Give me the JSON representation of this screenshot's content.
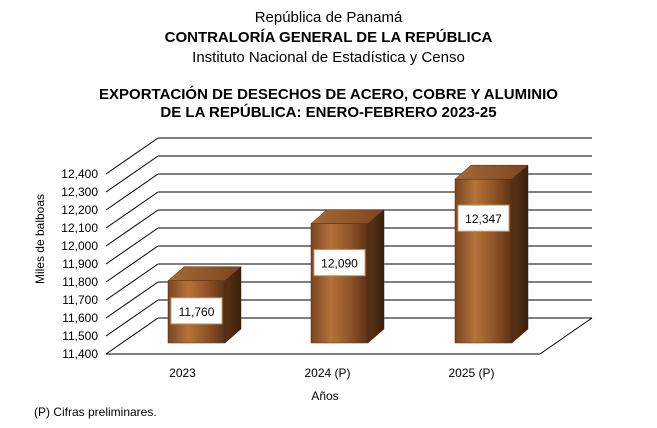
{
  "header": {
    "line1": "República de Panamá",
    "line2": "CONTRALORÍA GENERAL DE LA REPÚBLICA",
    "line3": "Instituto  Nacional de Estadística y Censo"
  },
  "chart_data": {
    "type": "bar",
    "title_lines": [
      "EXPORTACIÓN DE DESECHOS DE ACERO, COBRE Y ALUMINIO",
      "DE LA REPÚBLICA: ENERO-FEBRERO 2023-25"
    ],
    "categories": [
      "2023",
      "2024 (P)",
      "2025 (P)"
    ],
    "values": [
      11760,
      12090,
      12347
    ],
    "value_labels": [
      "11,760",
      "12,090",
      "12,347"
    ],
    "xlabel": "Años",
    "ylabel": "Miles de balboas",
    "ylim": [
      11400,
      12400
    ],
    "yticks": [
      11400,
      11500,
      11600,
      11700,
      11800,
      11900,
      12000,
      12100,
      12200,
      12300,
      12400
    ],
    "ytick_labels": [
      "11,400",
      "11,500",
      "11,600",
      "11,700",
      "11,800",
      "11,900",
      "12,000",
      "12,100",
      "12,200",
      "12,300",
      "12,400"
    ],
    "grid": true,
    "style": "3d-cylinder-bars",
    "colors": {
      "bar_front": "#9b5a2a",
      "bar_highlight": "#c98a4f",
      "bar_dark": "#5a3214",
      "bar_side": "#4a2a12",
      "bar_top": "#b87840",
      "label_border": "#c8a070"
    }
  },
  "footnote": "(P) Cifras  preliminares."
}
